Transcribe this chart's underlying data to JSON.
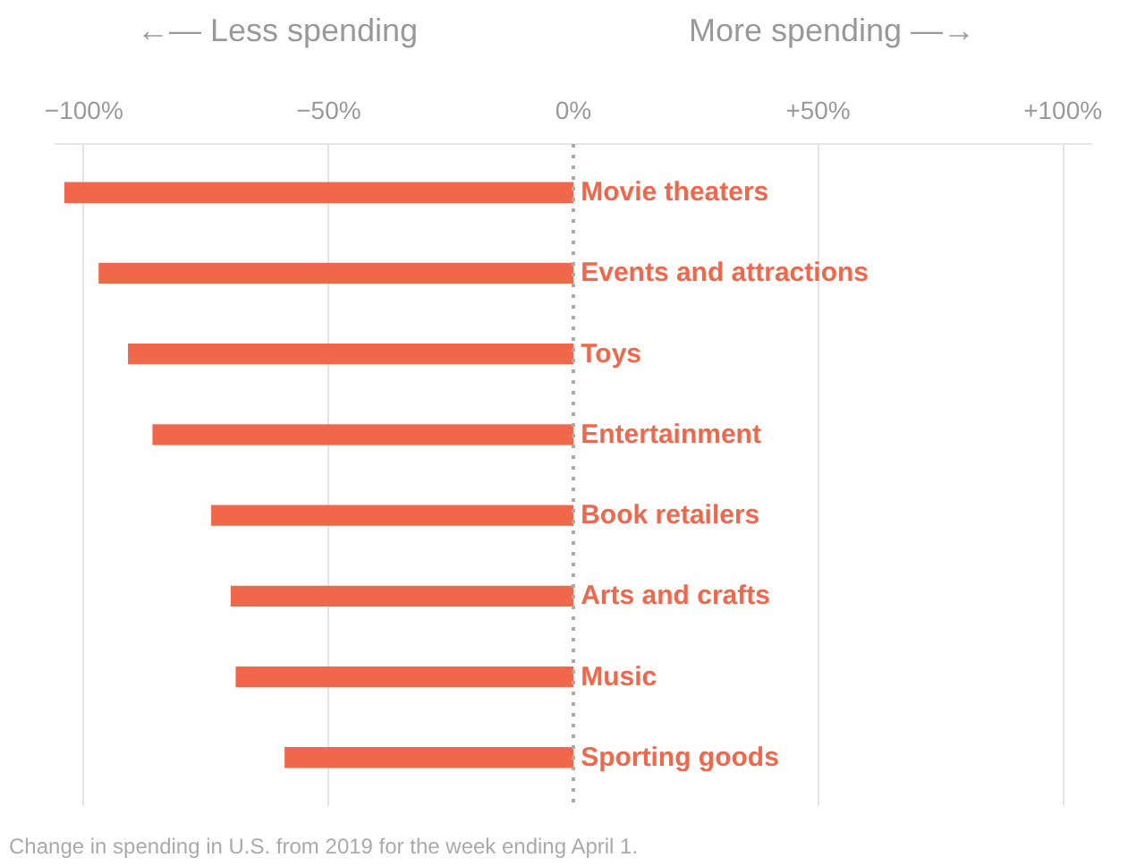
{
  "chart_data": {
    "type": "bar",
    "orientation": "horizontal",
    "categories": [
      "Movie theaters",
      "Events and attractions",
      "Toys",
      "Entertainment",
      "Book retailers",
      "Arts and crafts",
      "Music",
      "Sporting goods"
    ],
    "values": [
      -104,
      -97,
      -91,
      -86,
      -74,
      -70,
      -69,
      -59
    ],
    "color": "#f0674b",
    "xlim": [
      -106,
      106
    ],
    "xticks": [
      {
        "value": -100,
        "label": "−100%"
      },
      {
        "value": -50,
        "label": "−50%"
      },
      {
        "value": 0,
        "label": "0%"
      },
      {
        "value": 50,
        "label": "+50%"
      },
      {
        "value": 100,
        "label": "+100%"
      }
    ],
    "grid": "x",
    "ref_lines": [
      {
        "axis": "x",
        "value": 0,
        "label": null,
        "line_style": "dotted",
        "color": "#aaaaaa"
      }
    ],
    "annotations": [
      "←— Less spending",
      "More spending —→",
      "Change in spending in U.S. from 2019 for the week ending April 1."
    ]
  }
}
